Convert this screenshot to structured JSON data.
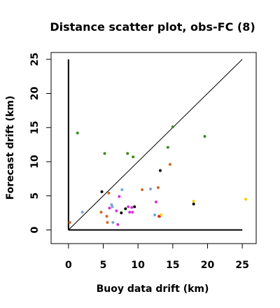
{
  "chart_data": {
    "type": "scatter",
    "title": "Distance scatter plot, obs-FC (8)",
    "xlabel": "Buoy data drift (km)",
    "ylabel": "Forecast drift (km)",
    "xlim": [
      -2.5,
      27
    ],
    "ylim": [
      -2,
      26
    ],
    "xticks": [
      "0",
      "5",
      "10",
      "15",
      "20",
      "25"
    ],
    "yticks": [
      "0",
      "5",
      "10",
      "15",
      "20",
      "25"
    ],
    "grid": false,
    "legend": "none",
    "reference_lines": [
      {
        "type": "identity",
        "from": [
          0,
          0
        ],
        "to": [
          25,
          25
        ],
        "color": "#000000"
      },
      {
        "type": "vertical",
        "x": 0,
        "from_y": 0,
        "to_y": 25,
        "color": "#000000"
      },
      {
        "type": "horizontal",
        "y": 0,
        "from_x": 0,
        "to_x": 25,
        "color": "#000000"
      }
    ],
    "points": [
      {
        "x": 1.3,
        "y": 14.2,
        "color": "#3a8a1f"
      },
      {
        "x": 5.2,
        "y": 11.2,
        "color": "#3a8a1f"
      },
      {
        "x": 8.5,
        "y": 11.2,
        "color": "#3a8a1f"
      },
      {
        "x": 9.3,
        "y": 10.7,
        "color": "#3a8a1f"
      },
      {
        "x": 15.0,
        "y": 15.1,
        "color": "#3a8a1f"
      },
      {
        "x": 14.3,
        "y": 12.1,
        "color": "#3a8a1f"
      },
      {
        "x": 19.6,
        "y": 13.7,
        "color": "#3a8a1f"
      },
      {
        "x": 13.2,
        "y": 8.7,
        "color": "#000000"
      },
      {
        "x": 14.6,
        "y": 9.6,
        "color": "#d2691e"
      },
      {
        "x": 0.2,
        "y": 1.1,
        "color": "#d2691e"
      },
      {
        "x": 2.0,
        "y": 2.6,
        "color": "#6fa8dc"
      },
      {
        "x": 4.8,
        "y": 5.6,
        "color": "#000000"
      },
      {
        "x": 5.8,
        "y": 5.4,
        "color": "#d2691e"
      },
      {
        "x": 4.7,
        "y": 2.6,
        "color": "#d2691e"
      },
      {
        "x": 5.5,
        "y": 2.0,
        "color": "#d2691e"
      },
      {
        "x": 5.6,
        "y": 1.1,
        "color": "#d2691e"
      },
      {
        "x": 5.9,
        "y": 3.2,
        "color": "#d633d6"
      },
      {
        "x": 6.2,
        "y": 3.7,
        "color": "#6fa8dc"
      },
      {
        "x": 6.3,
        "y": 3.4,
        "color": "#6fa8dc"
      },
      {
        "x": 6.4,
        "y": 1.1,
        "color": "#6fa8dc"
      },
      {
        "x": 6.9,
        "y": 2.8,
        "color": "#d633d6"
      },
      {
        "x": 7.1,
        "y": 0.8,
        "color": "#d633d6"
      },
      {
        "x": 7.3,
        "y": 4.9,
        "color": "#d633d6"
      },
      {
        "x": 7.6,
        "y": 2.5,
        "color": "#000000"
      },
      {
        "x": 7.7,
        "y": 5.9,
        "color": "#6fa8dc"
      },
      {
        "x": 8.2,
        "y": 3.1,
        "color": "#000000"
      },
      {
        "x": 8.6,
        "y": 3.4,
        "color": "#d633d6"
      },
      {
        "x": 8.8,
        "y": 2.6,
        "color": "#d633d6"
      },
      {
        "x": 9.1,
        "y": 3.3,
        "color": "#d633d6"
      },
      {
        "x": 9.2,
        "y": 2.6,
        "color": "#d633d6"
      },
      {
        "x": 9.5,
        "y": 3.4,
        "color": "#000000"
      },
      {
        "x": 10.6,
        "y": 5.9,
        "color": "#d2691e"
      },
      {
        "x": 11.8,
        "y": 6.0,
        "color": "#6fa8dc"
      },
      {
        "x": 12.4,
        "y": 2.2,
        "color": "#6fa8dc"
      },
      {
        "x": 12.6,
        "y": 4.1,
        "color": "#d633d6"
      },
      {
        "x": 12.9,
        "y": 6.2,
        "color": "#d2691e"
      },
      {
        "x": 13.0,
        "y": 2.0,
        "color": "#d2691e"
      },
      {
        "x": 13.1,
        "y": 2.0,
        "color": "#e02020"
      },
      {
        "x": 13.3,
        "y": 2.2,
        "color": "#f5d000"
      },
      {
        "x": 18.0,
        "y": 4.2,
        "color": "#f5d000"
      },
      {
        "x": 18.0,
        "y": 3.8,
        "color": "#000000"
      },
      {
        "x": 25.5,
        "y": 4.5,
        "color": "#f5d000"
      }
    ]
  }
}
